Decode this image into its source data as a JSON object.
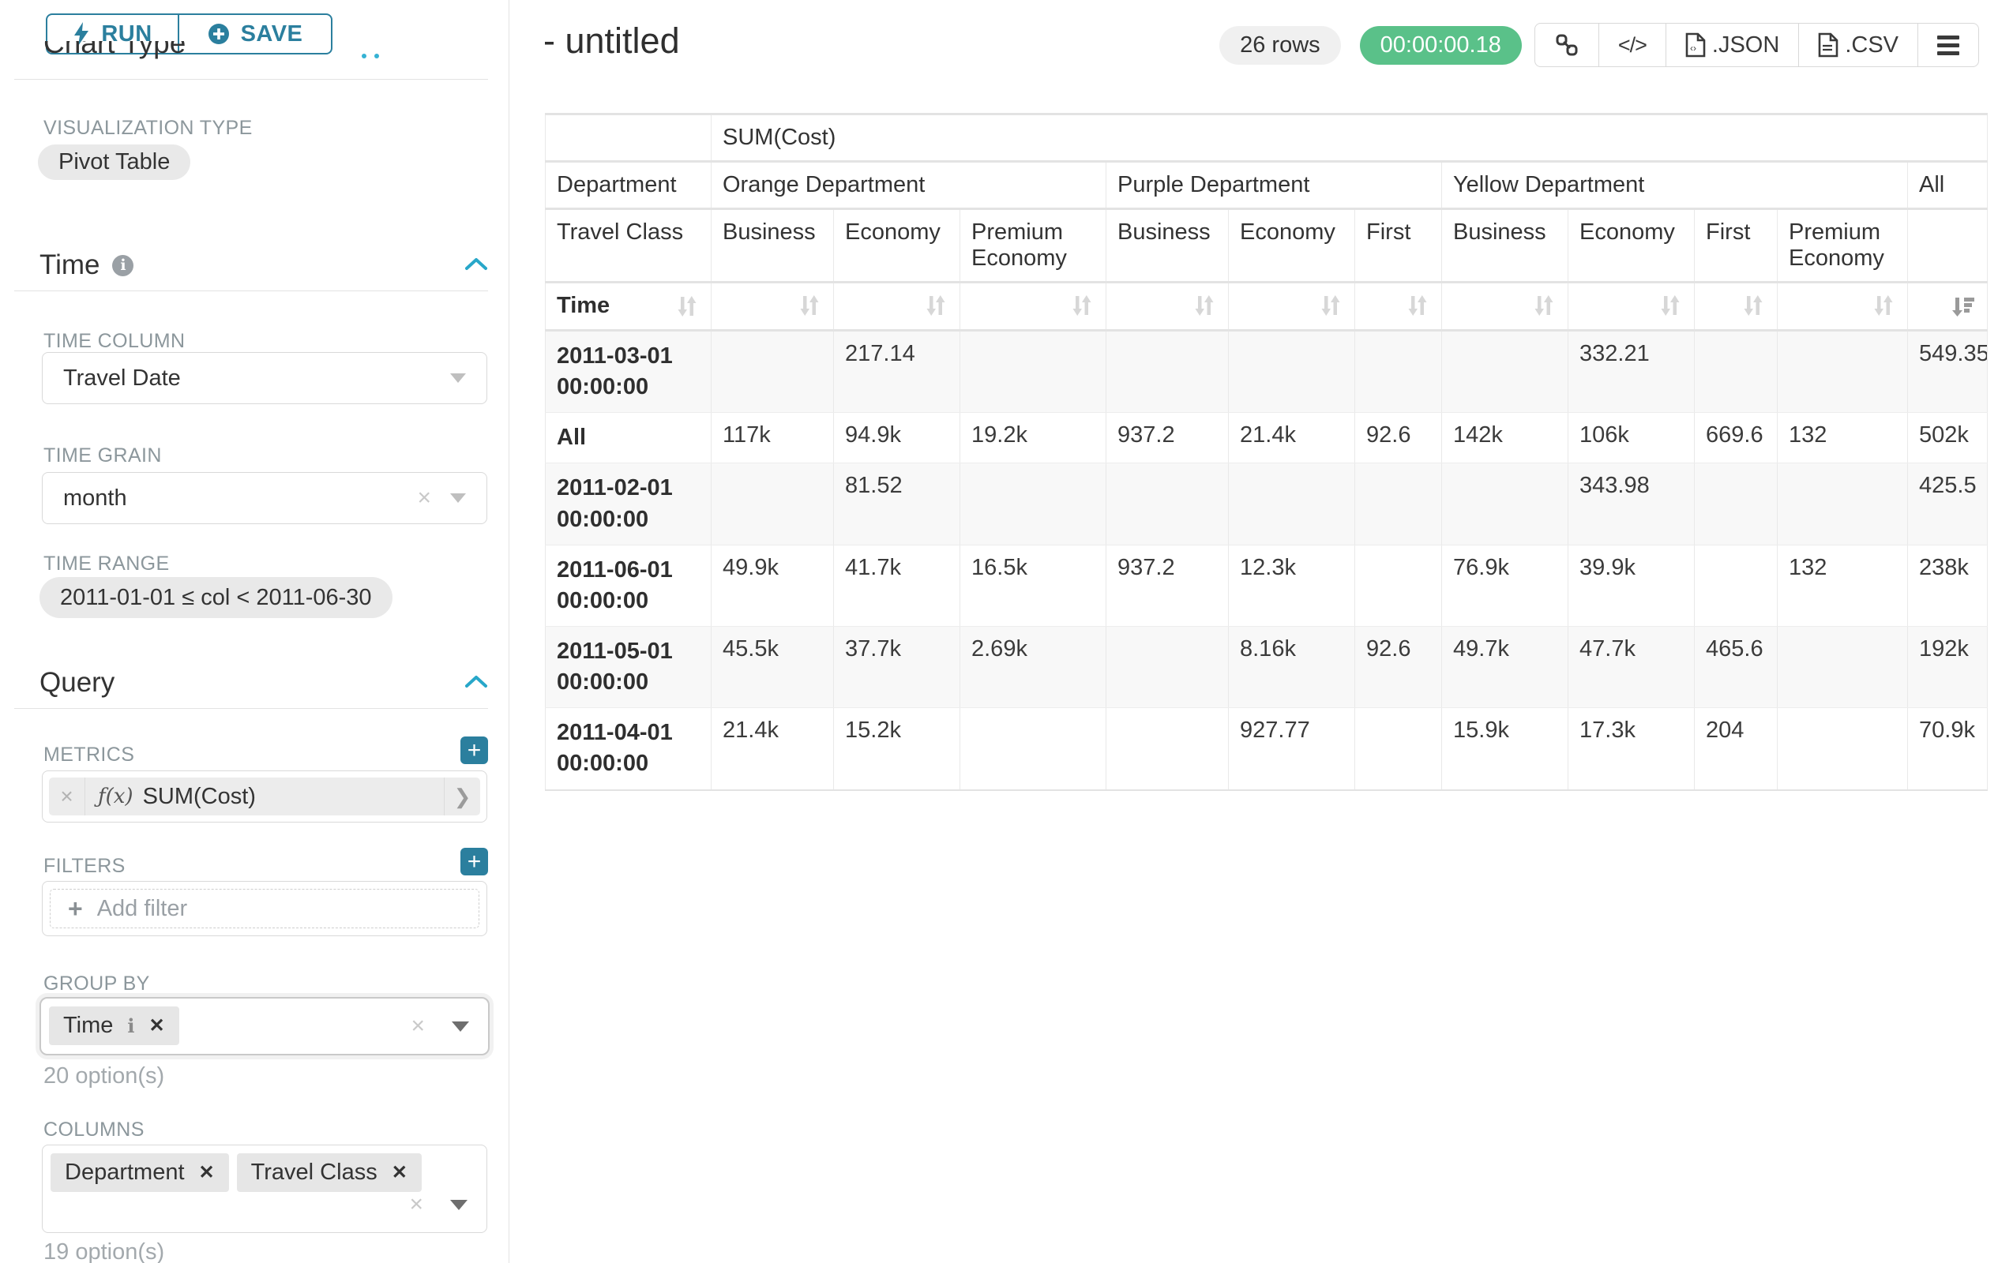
{
  "colors": {
    "teal_dark": "#2b7f9e",
    "teal_bright": "#28a7c9",
    "green": "#5ac189",
    "chip_gray": "#e6e6e6"
  },
  "left_panel": {
    "run_button": "RUN",
    "save_button": "SAVE",
    "clipped_heading": "Chart Type",
    "viz_label": "VISUALIZATION TYPE",
    "viz_value": "Pivot Table",
    "time_section": {
      "title": "Time",
      "time_column_label": "TIME COLUMN",
      "time_column_value": "Travel Date",
      "time_grain_label": "TIME GRAIN",
      "time_grain_value": "month",
      "time_range_label": "TIME RANGE",
      "time_range_value": "2011-01-01 ≤ col < 2011-06-30"
    },
    "query_section": {
      "title": "Query",
      "metrics_label": "METRICS",
      "metric_fx": "ƒ(x)",
      "metric_chip": "SUM(Cost)",
      "filters_label": "FILTERS",
      "add_filter": "Add filter",
      "groupby_label": "GROUP BY",
      "groupby_chips": [
        "Time"
      ],
      "groupby_hint": "20 option(s)",
      "columns_label": "COLUMNS",
      "columns_chips": [
        "Department",
        "Travel Class"
      ],
      "columns_hint": "19 option(s)"
    }
  },
  "header": {
    "title": "- untitled",
    "row_count": "26 rows",
    "elapsed": "00:00:00.18",
    "export_json": ".JSON",
    "export_csv": ".CSV"
  },
  "pivot": {
    "metric_label": "SUM(Cost)",
    "dept_header": "Department",
    "class_header": "Travel Class",
    "time_header": "Time",
    "groups": [
      {
        "label": "Orange Department",
        "classes": [
          "Business",
          "Economy",
          "Premium Economy"
        ]
      },
      {
        "label": "Purple Department",
        "classes": [
          "Business",
          "Economy",
          "First"
        ]
      },
      {
        "label": "Yellow Department",
        "classes": [
          "Business",
          "Economy",
          "First",
          "Premium Economy"
        ]
      }
    ],
    "all_label": "All",
    "sorted_col_index": 10,
    "rows": [
      {
        "label": "2011-03-01 00:00:00",
        "values": [
          "",
          "217.14",
          "",
          "",
          "",
          "",
          "",
          "332.21",
          "",
          "",
          "549.35"
        ]
      },
      {
        "label": "All",
        "values": [
          "117k",
          "94.9k",
          "19.2k",
          "937.2",
          "21.4k",
          "92.6",
          "142k",
          "106k",
          "669.6",
          "132",
          "502k"
        ]
      },
      {
        "label": "2011-02-01 00:00:00",
        "values": [
          "",
          "81.52",
          "",
          "",
          "",
          "",
          "",
          "343.98",
          "",
          "",
          "425.5"
        ]
      },
      {
        "label": "2011-06-01 00:00:00",
        "values": [
          "49.9k",
          "41.7k",
          "16.5k",
          "937.2",
          "12.3k",
          "",
          "76.9k",
          "39.9k",
          "",
          "132",
          "238k"
        ]
      },
      {
        "label": "2011-05-01 00:00:00",
        "values": [
          "45.5k",
          "37.7k",
          "2.69k",
          "",
          "8.16k",
          "92.6",
          "49.7k",
          "47.7k",
          "465.6",
          "",
          "192k"
        ]
      },
      {
        "label": "2011-04-01 00:00:00",
        "values": [
          "21.4k",
          "15.2k",
          "",
          "",
          "927.77",
          "",
          "15.9k",
          "17.3k",
          "204",
          "",
          "70.9k"
        ]
      }
    ]
  }
}
